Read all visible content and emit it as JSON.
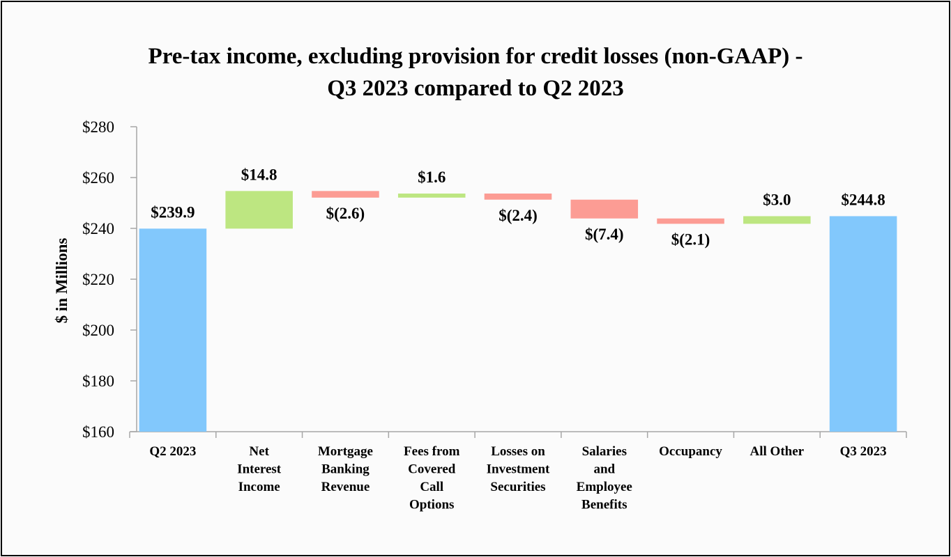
{
  "chart_data": {
    "type": "bar",
    "subtype": "waterfall",
    "title": [
      "Pre-tax income, excluding provision for credit losses (non-GAAP) -",
      "Q3 2023 compared to Q2 2023"
    ],
    "ylabel": "$ in Millions",
    "ylim": [
      160,
      280
    ],
    "y_ticks": [
      160,
      180,
      200,
      220,
      240,
      260,
      280
    ],
    "y_tick_labels": [
      "$160",
      "$180",
      "$200",
      "$220",
      "$240",
      "$260",
      "$280"
    ],
    "grid": false,
    "categories": [
      [
        "Q2 2023"
      ],
      [
        "Net",
        "Interest",
        "Income"
      ],
      [
        "Mortgage",
        "Banking",
        "Revenue"
      ],
      [
        "Fees from",
        "Covered",
        "Call",
        "Options"
      ],
      [
        "Losses on",
        "Investment",
        "Securities"
      ],
      [
        "Salaries",
        "and",
        "Employee",
        "Benefits"
      ],
      [
        "Occupancy"
      ],
      [
        "All Other"
      ],
      [
        "Q3 2023"
      ]
    ],
    "values": [
      239.9,
      14.8,
      -2.6,
      1.6,
      -2.4,
      -7.4,
      -2.1,
      3.0,
      244.8
    ],
    "bar_kind": [
      "total",
      "delta",
      "delta",
      "delta",
      "delta",
      "delta",
      "delta",
      "delta",
      "total"
    ],
    "data_labels": [
      "$239.9",
      "$14.8",
      "$(2.6)",
      "$1.6",
      "$(2.4)",
      "$(7.4)",
      "$(2.1)",
      "$3.0",
      "$244.8"
    ],
    "colors": {
      "total": "#82c8fc",
      "increase": "#bde681",
      "decrease": "#fc9c94"
    }
  }
}
